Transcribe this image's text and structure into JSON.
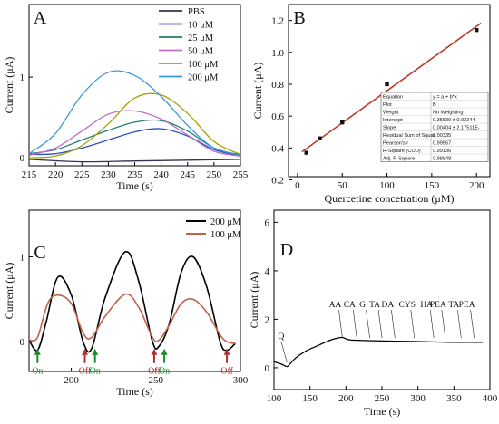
{
  "chart_data": [
    {
      "panel": "A",
      "type": "line",
      "xlabel": "Time (s)",
      "ylabel": "Current (μA)",
      "xlim": [
        215,
        255
      ],
      "ylim": [
        -0.1,
        1.9
      ],
      "xticks": [
        215,
        220,
        225,
        230,
        235,
        240,
        245,
        250,
        255
      ],
      "yticks": [
        0,
        1
      ],
      "legend": "top-right",
      "series": [
        {
          "name": "PBS",
          "color": "#333355",
          "x": [
            215,
            225,
            235,
            245,
            255
          ],
          "y": [
            -0.02,
            -0.05,
            -0.04,
            -0.03,
            -0.02
          ]
        },
        {
          "name": "10 μM",
          "color": "#2a4fc4",
          "x": [
            215,
            220,
            225,
            230,
            235,
            240,
            245,
            250,
            255
          ],
          "y": [
            0.04,
            0.05,
            0.12,
            0.22,
            0.32,
            0.36,
            0.27,
            0.1,
            0.02
          ]
        },
        {
          "name": "25 μM",
          "color": "#1e7e74",
          "x": [
            215,
            220,
            225,
            230,
            235,
            240,
            245,
            250,
            255
          ],
          "y": [
            0.05,
            0.1,
            0.22,
            0.34,
            0.44,
            0.46,
            0.33,
            0.12,
            0.03
          ]
        },
        {
          "name": "50 μM",
          "color": "#c070c4",
          "x": [
            215,
            220,
            225,
            230,
            235,
            240,
            245,
            250,
            255
          ],
          "y": [
            0.03,
            0.12,
            0.33,
            0.54,
            0.58,
            0.48,
            0.28,
            0.08,
            0.02
          ]
        },
        {
          "name": "100 μM",
          "color": "#a8a000",
          "x": [
            215,
            220,
            225,
            230,
            235,
            240,
            245,
            250,
            255
          ],
          "y": [
            0.0,
            0.02,
            0.15,
            0.42,
            0.74,
            0.78,
            0.55,
            0.2,
            0.04
          ]
        },
        {
          "name": "200 μM",
          "color": "#3a9ad6",
          "x": [
            215,
            220,
            225,
            230,
            235,
            240,
            245,
            250,
            255
          ],
          "y": [
            0.05,
            0.3,
            0.78,
            1.06,
            1.02,
            0.76,
            0.4,
            0.12,
            0.04
          ]
        }
      ]
    },
    {
      "panel": "B",
      "type": "scatter",
      "xlabel": "Quercetine concetration (μM)",
      "ylabel": "Current (μA)",
      "xlim": [
        -10,
        215
      ],
      "ylim": [
        0.22,
        1.3
      ],
      "xticks": [
        0,
        50,
        100,
        150,
        200
      ],
      "yticks": [
        0.2,
        0.4,
        0.6,
        0.8,
        1.0,
        1.2
      ],
      "points": {
        "x": [
          10,
          25,
          50,
          100,
          200
        ],
        "y": [
          0.37,
          0.46,
          0.56,
          0.8,
          1.14
        ]
      },
      "fit": {
        "intercept": 0.35539,
        "slope": 0.00404,
        "color": "#c0392b"
      },
      "fit_table": [
        [
          "Equation",
          "y = a + b*x"
        ],
        [
          "Plot",
          "B"
        ],
        [
          "Weight",
          "No Weighting"
        ],
        [
          "Intercept",
          "0.35539 ± 0.02244"
        ],
        [
          "Slope",
          "0.00404 ± 2.17511E-"
        ],
        [
          "Residual Sum of Squar",
          "0.00335"
        ],
        [
          "Pearson's r",
          "0.99567"
        ],
        [
          "R-Square (COD)",
          "0.99136"
        ],
        [
          "Adj. R-Square",
          "0.98848"
        ]
      ]
    },
    {
      "panel": "C",
      "type": "line",
      "xlabel": "Time (s)",
      "ylabel": "Current (μA)",
      "xlim": [
        175,
        300
      ],
      "ylim": [
        -0.35,
        1.55
      ],
      "xticks": [
        200,
        250,
        300
      ],
      "yticks": [
        0,
        1
      ],
      "legend": "top-right",
      "series": [
        {
          "name": "200 μM",
          "color": "#000000",
          "x": [
            175,
            180,
            185,
            192,
            200,
            207,
            212,
            220,
            232,
            240,
            248,
            252,
            258,
            265,
            272,
            280,
            288,
            292,
            297
          ],
          "y": [
            0.02,
            -0.1,
            0.22,
            0.76,
            0.55,
            0.0,
            -0.08,
            0.52,
            1.06,
            0.7,
            0.0,
            -0.05,
            0.22,
            0.82,
            1.0,
            0.65,
            0.0,
            -0.1,
            -0.02
          ]
        },
        {
          "name": "100 μM",
          "color": "#c0614a",
          "x": [
            175,
            180,
            186,
            192,
            200,
            207,
            212,
            220,
            232,
            240,
            248,
            252,
            258,
            265,
            272,
            280,
            288,
            292,
            297
          ],
          "y": [
            0.02,
            0.05,
            0.45,
            0.55,
            0.45,
            0.1,
            0.05,
            0.3,
            0.56,
            0.4,
            0.05,
            0.02,
            0.2,
            0.45,
            0.5,
            0.35,
            0.08,
            0.0,
            -0.02
          ]
        }
      ],
      "arrows": [
        {
          "label": "On",
          "x": 180,
          "color": "#1e8a2e"
        },
        {
          "label": "Off",
          "x": 208,
          "color": "#b0302a"
        },
        {
          "label": "On",
          "x": 214,
          "color": "#1e8a2e"
        },
        {
          "label": "Off",
          "x": 249,
          "color": "#b0302a"
        },
        {
          "label": "On",
          "x": 255,
          "color": "#1e8a2e"
        },
        {
          "label": "Off",
          "x": 292,
          "color": "#b0302a"
        }
      ]
    },
    {
      "panel": "D",
      "type": "line",
      "xlabel": "Time (s)",
      "ylabel": "Current (μA)",
      "xlim": [
        100,
        400
      ],
      "ylim": [
        -0.9,
        6.5
      ],
      "xticks": [
        100,
        150,
        200,
        250,
        300,
        350,
        400
      ],
      "yticks": [
        0,
        2,
        4,
        6
      ],
      "series": [
        {
          "name": "",
          "color": "#000000",
          "x": [
            100,
            110,
            118,
            122,
            130,
            145,
            160,
            175,
            185,
            195,
            205,
            230,
            260,
            300,
            350,
            390
          ],
          "y": [
            0.25,
            0.15,
            0.05,
            0.15,
            0.4,
            0.7,
            0.9,
            1.1,
            1.2,
            1.25,
            1.15,
            1.12,
            1.1,
            1.08,
            1.05,
            1.05
          ]
        }
      ],
      "annotations": [
        "Q",
        "AA",
        "CA",
        "G",
        "TA",
        "DA",
        "CYS",
        "HA",
        "PEA",
        "TA",
        "PEA"
      ]
    }
  ],
  "panel_labels": [
    "A",
    "B",
    "C",
    "D"
  ]
}
